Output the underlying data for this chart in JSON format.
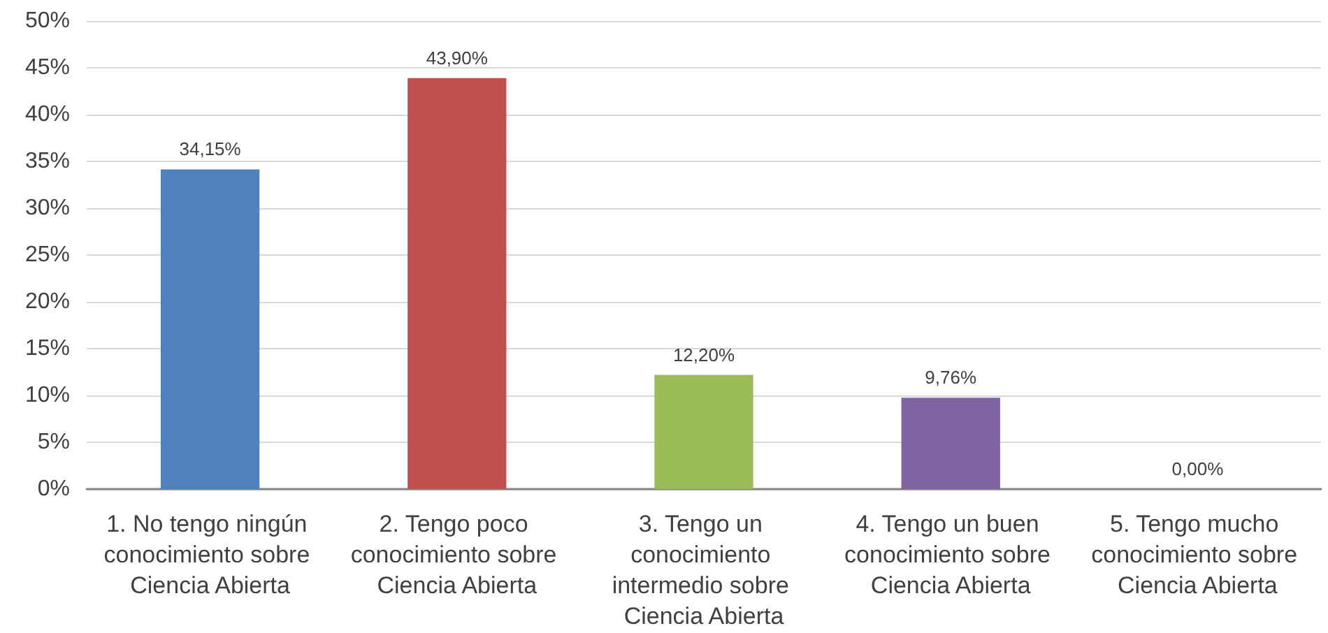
{
  "chart_data": {
    "type": "bar",
    "categories": [
      "1. No tengo ningún conocimiento sobre Ciencia Abierta",
      "2. Tengo poco conocimiento sobre Ciencia Abierta",
      "3. Tengo un conocimiento intermedio sobre Ciencia Abierta",
      "4. Tengo un buen conocimiento sobre Ciencia Abierta",
      "5. Tengo mucho conocimiento sobre Ciencia Abierta"
    ],
    "values": [
      34.15,
      43.9,
      12.2,
      9.76,
      0
    ],
    "value_labels": [
      "34,15%",
      "43,90%",
      "12,20%",
      "9,76%",
      "0,00%"
    ],
    "colors": [
      "#4f81bd",
      "#c0504d",
      "#9bbb59",
      "#8064a2",
      null
    ],
    "ylim": [
      0,
      50
    ],
    "yticks": [
      {
        "value": 0,
        "label": "0%"
      },
      {
        "value": 5,
        "label": "5%"
      },
      {
        "value": 10,
        "label": "10%"
      },
      {
        "value": 15,
        "label": "15%"
      },
      {
        "value": 20,
        "label": "20%"
      },
      {
        "value": 25,
        "label": "25%"
      },
      {
        "value": 30,
        "label": "30%"
      },
      {
        "value": 35,
        "label": "35%"
      },
      {
        "value": 40,
        "label": "40%"
      },
      {
        "value": 45,
        "label": "45%"
      },
      {
        "value": 50,
        "label": "50%"
      }
    ],
    "grid": "y"
  }
}
